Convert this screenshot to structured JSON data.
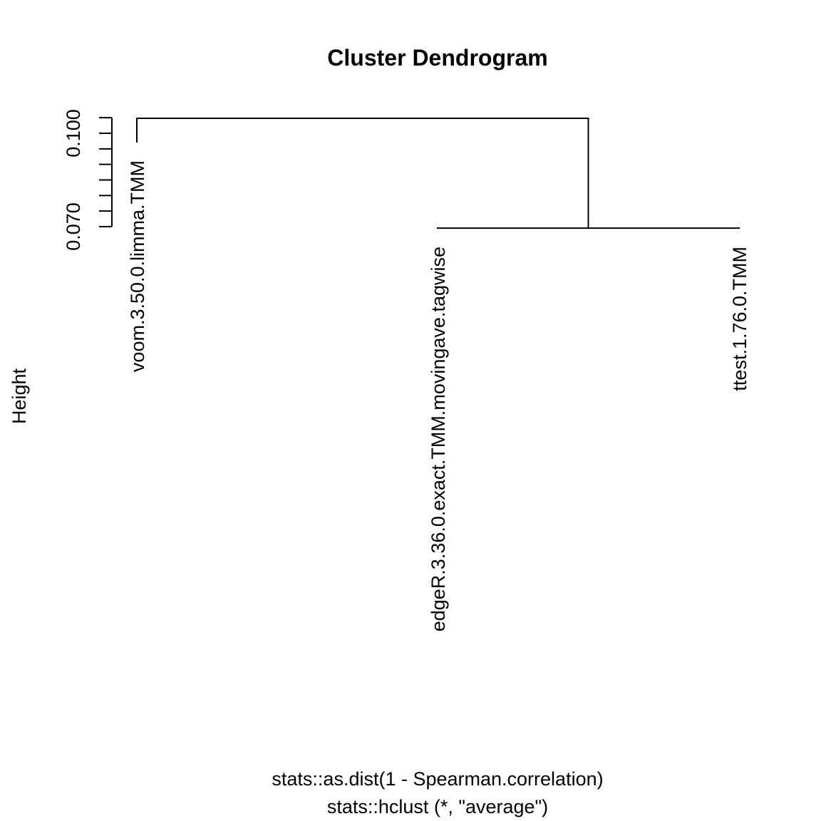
{
  "chart_data": {
    "type": "dendrogram",
    "title": "Cluster Dendrogram",
    "ylabel": "Height",
    "xlabel": "stats::as.dist(1 - Spearman.correlation)",
    "sub": "stats::hclust (*, \"average\")",
    "ylim": [
      0.065,
      0.11
    ],
    "y_ticks": [
      0.07,
      0.075,
      0.08,
      0.085,
      0.09,
      0.095,
      0.1,
      0.105
    ],
    "y_tick_labels": [
      "0.070",
      "",
      "",
      "",
      "",
      "",
      "0.100",
      ""
    ],
    "leaves": [
      {
        "label": "voom.3.50.0.limma.TMM"
      },
      {
        "label": "edgeR.3.36.0.exact.TMM.movingave.tagwise"
      },
      {
        "label": "ttest.1.76.0.TMM"
      }
    ],
    "merges": [
      {
        "children": [
          "edgeR.3.36.0.exact.TMM.movingave.tagwise",
          "ttest.1.76.0.TMM"
        ],
        "height": 0.0695
      },
      {
        "children": [
          "voom.3.50.0.limma.TMM",
          "merge-1"
        ],
        "height": 0.1048
      }
    ]
  }
}
